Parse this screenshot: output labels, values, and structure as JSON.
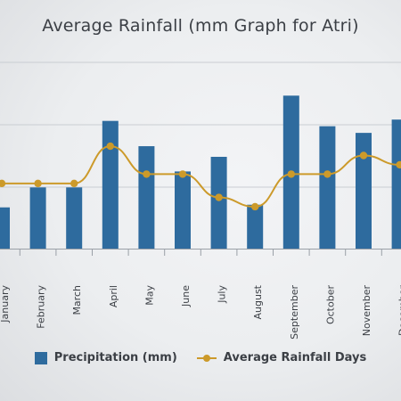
{
  "chart_data": {
    "type": "bar",
    "title": "Average Rainfall (mm Graph for Atri)",
    "xlabel": "",
    "ylabel": "",
    "categories": [
      "January",
      "February",
      "March",
      "April",
      "May",
      "June",
      "July",
      "August",
      "September",
      "October",
      "November",
      "December"
    ],
    "series": [
      {
        "name": "Precipitation (mm)",
        "type": "bar",
        "color": "#2e6b9e",
        "values": [
          31,
          46,
          46,
          96,
          77,
          58,
          69,
          33,
          115,
          92,
          87,
          97
        ]
      },
      {
        "name": "Average Rainfall Days",
        "type": "line",
        "color": "#cc9a2a",
        "values": [
          7.0,
          7.0,
          7.0,
          11.0,
          8.0,
          8.0,
          5.5,
          4.5,
          8.0,
          8.0,
          10.0,
          9.0
        ]
      }
    ],
    "ylim_bars": [
      0,
      140
    ],
    "ylim_line": [
      0,
      20
    ],
    "grid": true,
    "legend_position": "bottom"
  },
  "legend": {
    "precip_label": "Precipitation (mm)",
    "days_label": "Average Rainfall Days"
  }
}
